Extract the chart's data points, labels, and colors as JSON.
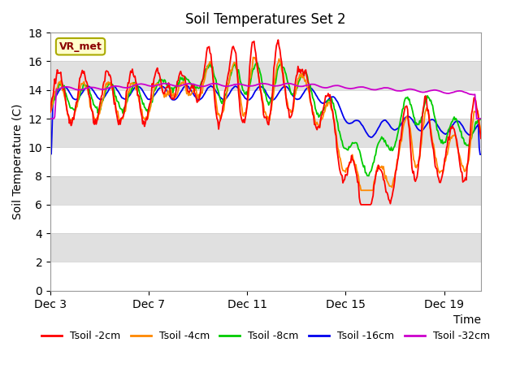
{
  "title": "Soil Temperatures Set 2",
  "xlabel": "Time",
  "ylabel": "Soil Temperature (C)",
  "ylim": [
    0,
    18
  ],
  "yticks": [
    0,
    2,
    4,
    6,
    8,
    10,
    12,
    14,
    16,
    18
  ],
  "xtick_labels": [
    "Dec 3",
    "Dec 7",
    "Dec 11",
    "Dec 15",
    "Dec 19"
  ],
  "xtick_positions": [
    0,
    4,
    8,
    12,
    16
  ],
  "legend_labels": [
    "Tsoil -2cm",
    "Tsoil -4cm",
    "Tsoil -8cm",
    "Tsoil -16cm",
    "Tsoil -32cm"
  ],
  "line_colors": [
    "#ff0000",
    "#ff8800",
    "#00cc00",
    "#0000ee",
    "#cc00cc"
  ],
  "annotation_text": "VR_met",
  "annotation_color": "#8b0000",
  "annotation_bg": "#ffffcc",
  "annotation_border": "#aaaa00",
  "band_colors": [
    "#ffffff",
    "#e0e0e0"
  ],
  "n_points": 500,
  "xlim": [
    0,
    17.5
  ],
  "figsize": [
    6.4,
    4.8
  ],
  "dpi": 100
}
